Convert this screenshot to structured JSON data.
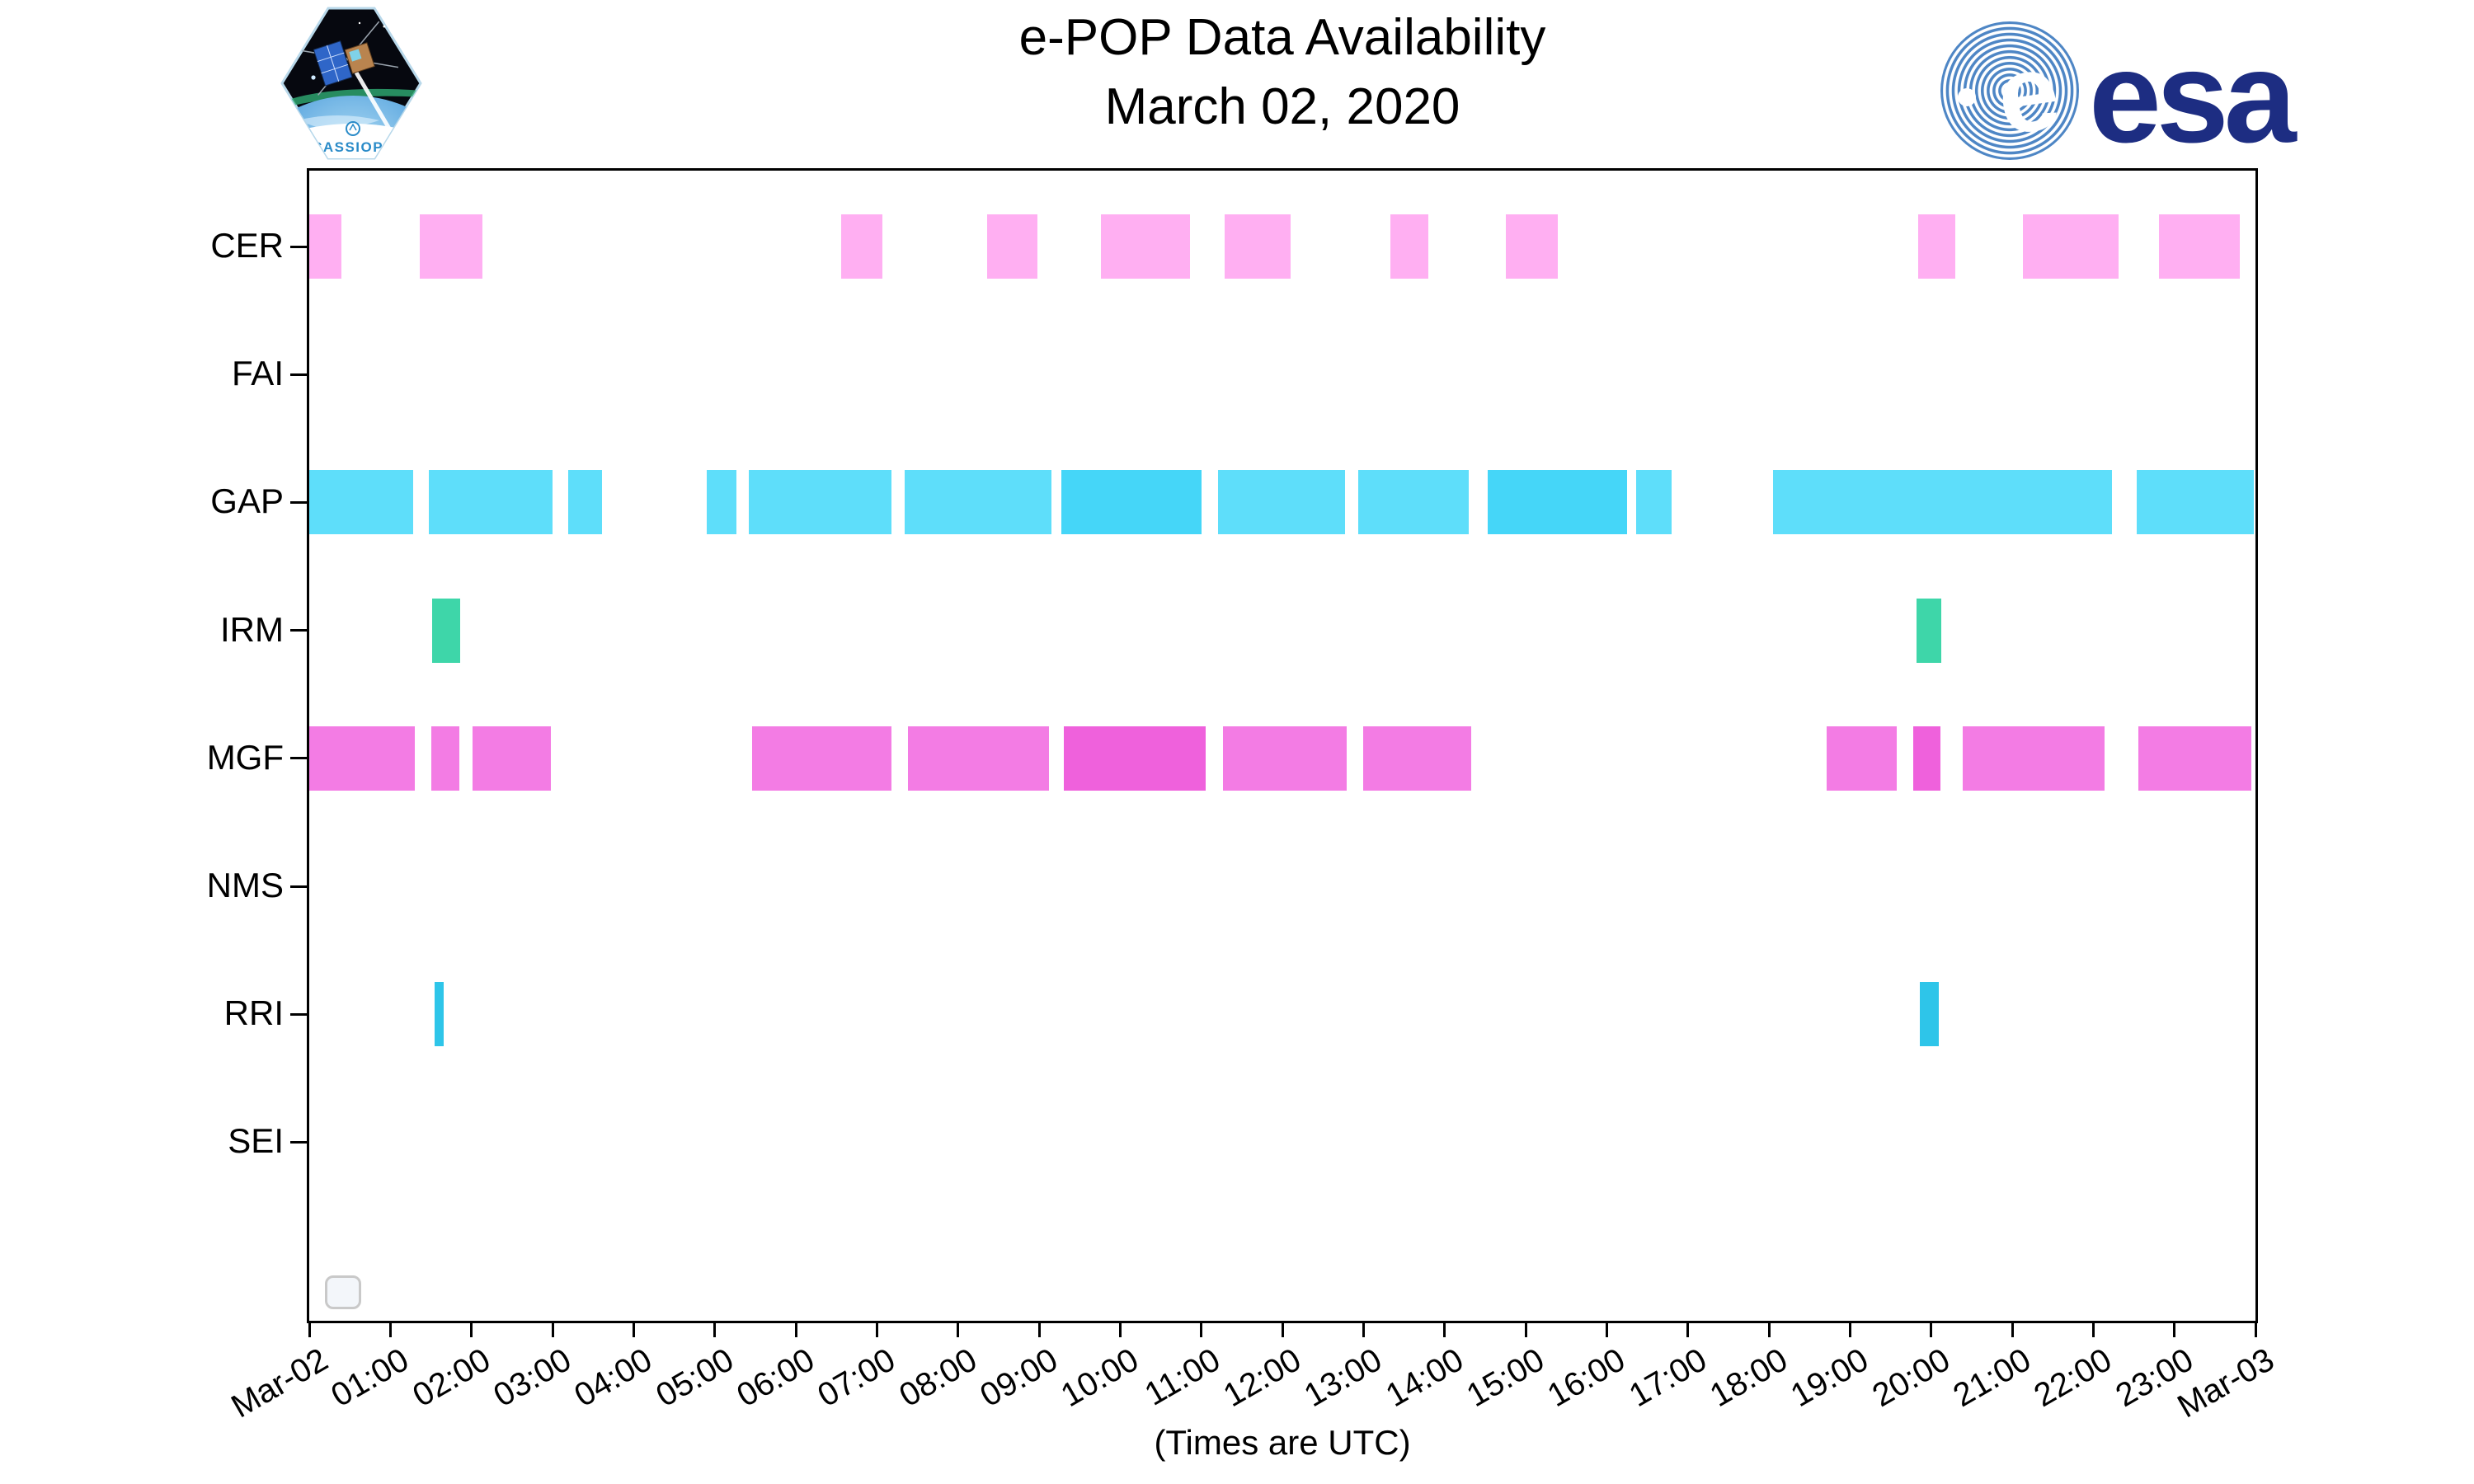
{
  "header": {
    "cassiope_patch_text": "CASSIOPE",
    "esa_logo_text": "esa"
  },
  "chart_data": {
    "type": "bar",
    "subtype": "availability_timeline_gantt",
    "title": "e-POP Data Availability",
    "subtitle": "March 02, 2020",
    "xlabel": "(Times are UTC)",
    "grid": false,
    "legend": "empty rounded box at bottom-left inside plot",
    "x_axis": {
      "unit": "hours UTC on 2020-03-02",
      "range_hours": [
        0,
        24
      ],
      "tick_interval_hours": 1,
      "tick_labels": [
        "Mar-02",
        "01:00",
        "02:00",
        "03:00",
        "04:00",
        "05:00",
        "06:00",
        "07:00",
        "08:00",
        "09:00",
        "10:00",
        "11:00",
        "12:00",
        "13:00",
        "14:00",
        "15:00",
        "16:00",
        "17:00",
        "18:00",
        "19:00",
        "20:00",
        "21:00",
        "22:00",
        "23:00",
        "Mar-03"
      ]
    },
    "axis_color": "#000000",
    "rows": [
      {
        "label": "CER",
        "color": "#ffaff2",
        "overlap_color": "#ffaff2",
        "intervals": [
          {
            "start": 0.0,
            "end": 0.4
          },
          {
            "start": 1.36,
            "end": 2.14
          },
          {
            "start": 6.56,
            "end": 7.07
          },
          {
            "start": 8.36,
            "end": 8.98
          },
          {
            "start": 9.76,
            "end": 10.86
          },
          {
            "start": 11.29,
            "end": 12.1
          },
          {
            "start": 13.33,
            "end": 13.8
          },
          {
            "start": 14.76,
            "end": 15.4
          },
          {
            "start": 19.84,
            "end": 20.3
          },
          {
            "start": 21.13,
            "end": 22.31
          },
          {
            "start": 22.81,
            "end": 23.81
          }
        ]
      },
      {
        "label": "FAI",
        "color": null,
        "overlap_color": null,
        "intervals": []
      },
      {
        "label": "GAP",
        "color": "#5edefa",
        "overlap_color": "#45d6f8",
        "intervals": [
          {
            "start": 0.0,
            "end": 1.28
          },
          {
            "start": 1.47,
            "end": 3.0
          },
          {
            "start": 3.19,
            "end": 3.61
          },
          {
            "start": 4.9,
            "end": 5.27
          },
          {
            "start": 5.42,
            "end": 7.18
          },
          {
            "start": 7.34,
            "end": 9.15
          },
          {
            "start": 9.27,
            "end": 11.0,
            "overlap": true
          },
          {
            "start": 11.21,
            "end": 12.77
          },
          {
            "start": 12.94,
            "end": 14.3
          },
          {
            "start": 14.53,
            "end": 16.25,
            "overlap": true
          },
          {
            "start": 16.36,
            "end": 16.8
          },
          {
            "start": 18.05,
            "end": 22.23
          },
          {
            "start": 22.54,
            "end": 23.98
          }
        ]
      },
      {
        "label": "IRM",
        "color": "#3ed6a9",
        "overlap_color": "#3ed6a9",
        "intervals": [
          {
            "start": 1.52,
            "end": 1.86
          },
          {
            "start": 19.82,
            "end": 20.13
          }
        ]
      },
      {
        "label": "MGF",
        "color": "#f37ce4",
        "overlap_color": "#ef61dc",
        "intervals": [
          {
            "start": 0.0,
            "end": 1.3
          },
          {
            "start": 1.51,
            "end": 1.85
          },
          {
            "start": 2.01,
            "end": 2.98
          },
          {
            "start": 5.46,
            "end": 7.18
          },
          {
            "start": 7.38,
            "end": 9.12
          },
          {
            "start": 9.31,
            "end": 11.05,
            "overlap": true
          },
          {
            "start": 11.27,
            "end": 12.79
          },
          {
            "start": 13.0,
            "end": 14.33
          },
          {
            "start": 18.71,
            "end": 19.58
          },
          {
            "start": 19.78,
            "end": 20.12,
            "overlap": true
          },
          {
            "start": 20.39,
            "end": 22.14
          },
          {
            "start": 22.56,
            "end": 23.95
          }
        ]
      },
      {
        "label": "NMS",
        "color": null,
        "overlap_color": null,
        "intervals": []
      },
      {
        "label": "RRI",
        "color": "#2ec5e9",
        "overlap_color": "#2ec5e9",
        "intervals": [
          {
            "start": 1.55,
            "end": 1.66
          },
          {
            "start": 19.86,
            "end": 20.09
          }
        ]
      },
      {
        "label": "SEI",
        "color": null,
        "overlap_color": null,
        "intervals": []
      }
    ]
  }
}
